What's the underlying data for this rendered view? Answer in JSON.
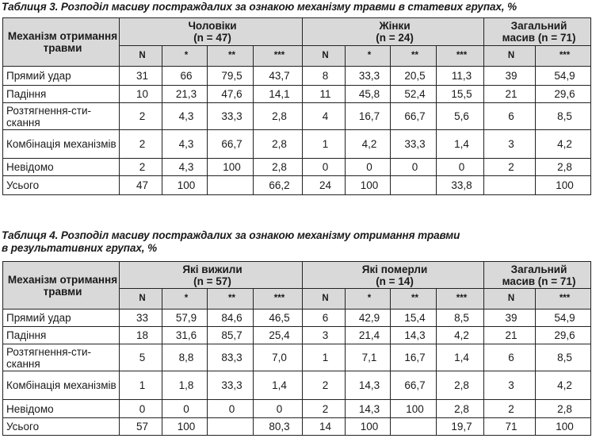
{
  "table3": {
    "caption": "Таблиця 3. Розподіл масиву постраждалих за ознакою механізму травми в статевих групах, %",
    "head": {
      "mechanism": "Механізм отримання травми",
      "group1": "Чоловіки",
      "group1_n": "(n = 47)",
      "group2": "Жінки",
      "group2_n": "(n = 24)",
      "group3": "Загальний",
      "group3_n": "масив (n = 71)",
      "sub": [
        "N",
        "*",
        "**",
        "***",
        "N",
        "*",
        "**",
        "***",
        "N",
        "***"
      ]
    },
    "rows": [
      {
        "label": "Прямий удар",
        "cells": [
          "31",
          "66",
          "79,5",
          "43,7",
          "8",
          "33,3",
          "20,5",
          "11,3",
          "39",
          "54,9"
        ]
      },
      {
        "label": "Падіння",
        "cells": [
          "10",
          "21,3",
          "47,6",
          "14,1",
          "11",
          "45,8",
          "52,4",
          "15,5",
          "21",
          "29,6"
        ]
      },
      {
        "label": "Розтягнення-сти-скання",
        "cells": [
          "2",
          "4,3",
          "33,3",
          "2,8",
          "4",
          "16,7",
          "66,7",
          "5,6",
          "6",
          "8,5"
        ]
      },
      {
        "label": "Комбінація механізмів",
        "cells": [
          "2",
          "4,3",
          "66,7",
          "2,8",
          "1",
          "4,2",
          "33,3",
          "1,4",
          "3",
          "4,2"
        ]
      },
      {
        "label": "Невідомо",
        "cells": [
          "2",
          "4,3",
          "100",
          "2,8",
          "0",
          "0",
          "0",
          "0",
          "2",
          "2,8"
        ]
      },
      {
        "label": "Усього",
        "cells": [
          "47",
          "100",
          "",
          "66,2",
          "24",
          "100",
          "",
          "33,8",
          "",
          "100"
        ]
      }
    ]
  },
  "table4": {
    "caption_line1": "Таблиця 4. Розподіл масиву постраждалих за ознакою механізму отримання травми",
    "caption_line2": "в результативних групах, %",
    "head": {
      "mechanism": "Механізм отримання травми",
      "group1": "Які вижили",
      "group1_n": "(n = 57)",
      "group2": "Які померли",
      "group2_n": "(n = 14)",
      "group3": "Загальний",
      "group3_n": "масив (n = 71)",
      "sub": [
        "N",
        "*",
        "**",
        "***",
        "N",
        "*",
        "**",
        "***",
        "N",
        "***"
      ]
    },
    "rows": [
      {
        "label": "Прямий удар",
        "cells": [
          "33",
          "57,9",
          "84,6",
          "46,5",
          "6",
          "42,9",
          "15,4",
          "8,5",
          "39",
          "54,9"
        ]
      },
      {
        "label": "Падіння",
        "cells": [
          "18",
          "31,6",
          "85,7",
          "25,4",
          "3",
          "21,4",
          "14,3",
          "4,2",
          "21",
          "29,6"
        ]
      },
      {
        "label": "Розтягнення-сти-скання",
        "cells": [
          "5",
          "8,8",
          "83,3",
          "7,0",
          "1",
          "7,1",
          "16,7",
          "1,4",
          "6",
          "8,5"
        ]
      },
      {
        "label": "Комбінація механізмів",
        "cells": [
          "1",
          "1,8",
          "33,3",
          "1,4",
          "2",
          "14,3",
          "66,7",
          "2,8",
          "3",
          "4,2"
        ]
      },
      {
        "label": "Невідомо",
        "cells": [
          "0",
          "0",
          "0",
          "0",
          "2",
          "14,3",
          "100",
          "2,8",
          "2",
          "2,8"
        ]
      },
      {
        "label": "Усього",
        "cells": [
          "57",
          "100",
          "",
          "80,3",
          "14",
          "100",
          "",
          "19,7",
          "71",
          "100"
        ]
      }
    ]
  }
}
